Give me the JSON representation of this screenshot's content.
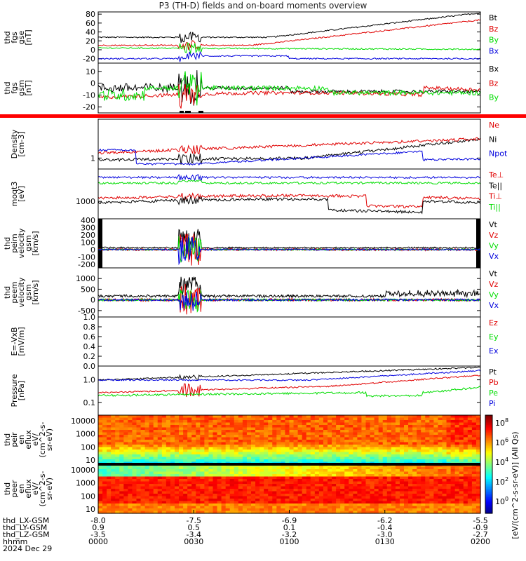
{
  "title": "P3 (TH-D) fields and on-board moments overview",
  "colors": {
    "black": "#000000",
    "red": "#e00000",
    "green": "#00dd00",
    "blue": "#0000dd"
  },
  "chart_data": [
    {
      "type": "line",
      "ylabel": [
        "thd",
        "fgs",
        "gse",
        "[nT]"
      ],
      "yticks": [
        "80",
        "60",
        "40",
        "20",
        "0",
        "-20"
      ],
      "ylim": [
        -30,
        85
      ],
      "legend": [
        {
          "label": "Bt",
          "color": "black"
        },
        {
          "label": "Bz",
          "color": "red"
        },
        {
          "label": "By",
          "color": "green"
        },
        {
          "label": "Bx",
          "color": "blue"
        }
      ]
    },
    {
      "type": "line",
      "ylabel": [
        "thd",
        "fgs",
        "gsm",
        "[nT]"
      ],
      "yticks": [
        "10",
        "0",
        "-10",
        "-20"
      ],
      "ylim": [
        -25,
        17
      ],
      "legend": [
        {
          "label": "Bx",
          "color": "black"
        },
        {
          "label": "Bz",
          "color": "red"
        },
        {
          "label": "By",
          "color": "green"
        }
      ]
    },
    {
      "type": "line",
      "ylabel": [
        "Density",
        "[cm-3]"
      ],
      "yticks": [
        "1"
      ],
      "scale": "log",
      "legend": [
        {
          "label": "Ne",
          "color": "red"
        },
        {
          "label": "Ni",
          "color": "black"
        },
        {
          "label": "Npot",
          "color": "blue"
        }
      ]
    },
    {
      "type": "line",
      "ylabel": [
        "moqt3",
        "[eV]"
      ],
      "yticks": [
        "1000"
      ],
      "scale": "log",
      "legend": [
        {
          "label": "Te⊥",
          "color": "red"
        },
        {
          "label": "Te||",
          "color": "black"
        },
        {
          "label": "Ti⊥",
          "color": "red"
        },
        {
          "label": "Ti||",
          "color": "green"
        }
      ]
    },
    {
      "type": "line",
      "ylabel": [
        "thd",
        "peim",
        "velocity",
        "gsm",
        "[km/s]"
      ],
      "yticks": [
        "400",
        "300",
        "200",
        "100",
        "0",
        "-100",
        "-200"
      ],
      "ylim": [
        -250,
        420
      ],
      "legend": [
        {
          "label": "Vt",
          "color": "black"
        },
        {
          "label": "Vz",
          "color": "red"
        },
        {
          "label": "Vy",
          "color": "green"
        },
        {
          "label": "Vx",
          "color": "blue"
        }
      ]
    },
    {
      "type": "line",
      "ylabel": [
        "thd",
        "peem",
        "velocity",
        "gsm",
        "[km/s]"
      ],
      "yticks": [
        "1000",
        "500",
        "0",
        "-500"
      ],
      "ylim": [
        -800,
        1500
      ],
      "legend": [
        {
          "label": "Vt",
          "color": "black"
        },
        {
          "label": "Vz",
          "color": "red"
        },
        {
          "label": "Vy",
          "color": "green"
        },
        {
          "label": "Vx",
          "color": "blue"
        }
      ]
    },
    {
      "type": "line",
      "ylabel": [
        "E=-VxB",
        "[mV/m]"
      ],
      "yticks": [
        "1.0",
        "0.8",
        "0.6",
        "0.4",
        "0.2",
        "0.0"
      ],
      "ylim": [
        0,
        1
      ],
      "legend": [
        {
          "label": "Ez",
          "color": "red"
        },
        {
          "label": "Ey",
          "color": "green"
        },
        {
          "label": "Ex",
          "color": "blue"
        }
      ]
    },
    {
      "type": "line",
      "ylabel": [
        "Pressure",
        "[nPa]"
      ],
      "yticks": [
        "1.0",
        "0.1"
      ],
      "scale": "log",
      "legend": [
        {
          "label": "Pt",
          "color": "black"
        },
        {
          "label": "Pb",
          "color": "red"
        },
        {
          "label": "Pe",
          "color": "green"
        },
        {
          "label": "Pi",
          "color": "blue"
        }
      ]
    },
    {
      "type": "heatmap",
      "ylabel": [
        "thd",
        "peir",
        "en",
        "eflux",
        "eV/",
        "(cm^2-s-",
        "sr-eV)"
      ],
      "yticks": [
        "10000",
        "1000",
        "100",
        "10"
      ],
      "scale": "log"
    },
    {
      "type": "heatmap",
      "ylabel": [
        "thd",
        "peer",
        "en",
        "eflux",
        "eV/",
        "(cm^2-s-",
        "sr-eV)"
      ],
      "yticks": [
        "10000",
        "1000",
        "100",
        "10"
      ],
      "scale": "log"
    }
  ],
  "colorbar": {
    "label": "[eV/(cm^2-s-sr-eV)] (All Qs)",
    "ticks": [
      "10^8",
      "10^6",
      "10^4",
      "10^2",
      "10^0"
    ]
  },
  "xaxis": {
    "row_labels": [
      "thd_LX-GSM",
      "thd_LY-GSM",
      "thd_LZ-GSM",
      "hhmm",
      "2024 Dec 29"
    ],
    "ticks": [
      {
        "lx": "-8.0",
        "ly": "0.9",
        "lz": "-3.5",
        "hhmm": "0000"
      },
      {
        "lx": "-7.5",
        "ly": "0.5",
        "lz": "-3.4",
        "hhmm": "0030"
      },
      {
        "lx": "-6.9",
        "ly": "0.1",
        "lz": "-3.2",
        "hhmm": "0100"
      },
      {
        "lx": "-6.2",
        "ly": "-0.4",
        "lz": "-3.0",
        "hhmm": "0130"
      },
      {
        "lx": "-5.5",
        "ly": "-0.9",
        "lz": "-2.7",
        "hhmm": "0200"
      }
    ]
  }
}
